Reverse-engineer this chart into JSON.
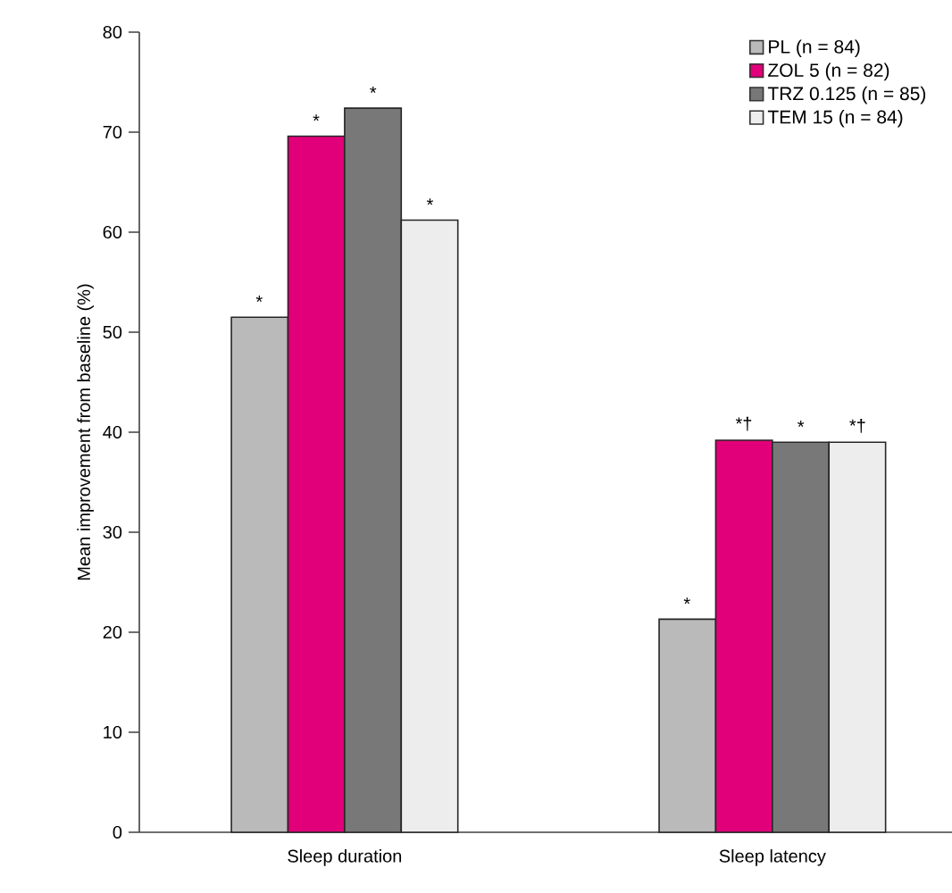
{
  "chart_data": {
    "type": "bar",
    "ylabel": "Mean improvement from baseline (%)",
    "categories": [
      "Sleep duration",
      "Sleep latency"
    ],
    "series": [
      {
        "name": "PL (n = 84)",
        "color": "#bababa",
        "values": [
          51.5,
          21.3
        ],
        "value_labels": [
          "*",
          "*"
        ]
      },
      {
        "name": "ZOL 5 (n = 82)",
        "color": "#e2007a",
        "values": [
          69.6,
          39.2
        ],
        "value_labels": [
          "*",
          "*†"
        ]
      },
      {
        "name": "TRZ 0.125 (n = 85)",
        "color": "#787878",
        "values": [
          72.4,
          39.0
        ],
        "value_labels": [
          "*",
          "*"
        ]
      },
      {
        "name": "TEM 15 (n = 84)",
        "color": "#ededed",
        "values": [
          61.2,
          39.0
        ],
        "value_labels": [
          "*",
          "*†"
        ]
      }
    ],
    "ylim": [
      0,
      80
    ],
    "yticks": [
      0,
      10,
      20,
      30,
      40,
      50,
      60,
      70,
      80
    ],
    "grid": false,
    "legend": "top right"
  }
}
